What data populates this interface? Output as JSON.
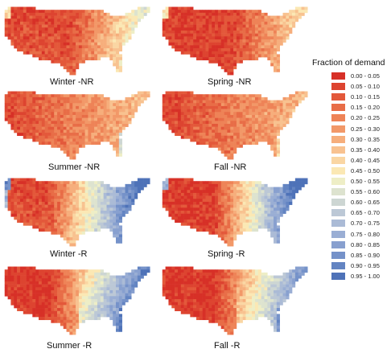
{
  "legend": {
    "title": "Fraction of demand",
    "items": [
      {
        "label": "0.00 - 0.05",
        "color": "#d73027"
      },
      {
        "label": "0.05 - 0.10",
        "color": "#dd4430"
      },
      {
        "label": "0.10 - 0.15",
        "color": "#e3583a"
      },
      {
        "label": "0.15 - 0.20",
        "color": "#e86d47"
      },
      {
        "label": "0.20 - 0.25",
        "color": "#ee8357"
      },
      {
        "label": "0.25 - 0.30",
        "color": "#f29868"
      },
      {
        "label": "0.30 - 0.35",
        "color": "#f6ae7c"
      },
      {
        "label": "0.35 - 0.40",
        "color": "#f8c290"
      },
      {
        "label": "0.40 - 0.45",
        "color": "#fad6a3"
      },
      {
        "label": "0.45 - 0.50",
        "color": "#fbe8b4"
      },
      {
        "label": "0.50 - 0.55",
        "color": "#eeeec6"
      },
      {
        "label": "0.55 - 0.60",
        "color": "#dde3cf"
      },
      {
        "label": "0.60 - 0.65",
        "color": "#cdd6d3"
      },
      {
        "label": "0.65 - 0.70",
        "color": "#bcc8d6"
      },
      {
        "label": "0.70 - 0.75",
        "color": "#abbbd6"
      },
      {
        "label": "0.75 - 0.80",
        "color": "#9aaed4"
      },
      {
        "label": "0.80 - 0.85",
        "color": "#88a0cf"
      },
      {
        "label": "0.85 - 0.90",
        "color": "#7592c9"
      },
      {
        "label": "0.90 - 0.95",
        "color": "#6384c2"
      },
      {
        "label": "0.95 - 1.00",
        "color": "#4e72b8"
      }
    ]
  },
  "panels": [
    {
      "label": "Winter -NR",
      "mode": "winter-nr"
    },
    {
      "label": "Spring -NR",
      "mode": "spring-nr"
    },
    {
      "label": "Summer -NR",
      "mode": "summer-nr"
    },
    {
      "label": "Fall -NR",
      "mode": "fall-nr"
    },
    {
      "label": "Winter -R",
      "mode": "winter-r"
    },
    {
      "label": "Spring -R",
      "mode": "spring-r"
    },
    {
      "label": "Summer -R",
      "mode": "summer-r"
    },
    {
      "label": "Fall -R",
      "mode": "fall-r"
    }
  ]
}
